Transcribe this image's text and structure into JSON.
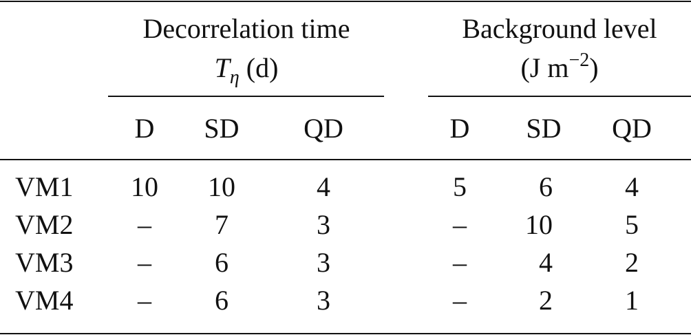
{
  "table": {
    "groups": [
      {
        "title": "Decorrelation time",
        "unit": {
          "symbol": "T",
          "subscript": "η",
          "text": " (d)"
        }
      },
      {
        "title": "Background level",
        "unit": {
          "text": "(J m",
          "superscript": "−2",
          "close": ")"
        }
      }
    ],
    "columns": [
      "D",
      "SD",
      "QD",
      "D",
      "SD",
      "QD"
    ],
    "rows": [
      [
        "VM1",
        10,
        10,
        4,
        5,
        6,
        4
      ],
      [
        "VM2",
        "–",
        7,
        3,
        "–",
        10,
        5
      ],
      [
        "VM3",
        "–",
        6,
        3,
        "–",
        4,
        2
      ],
      [
        "VM4",
        "–",
        6,
        3,
        "–",
        2,
        1
      ]
    ]
  }
}
